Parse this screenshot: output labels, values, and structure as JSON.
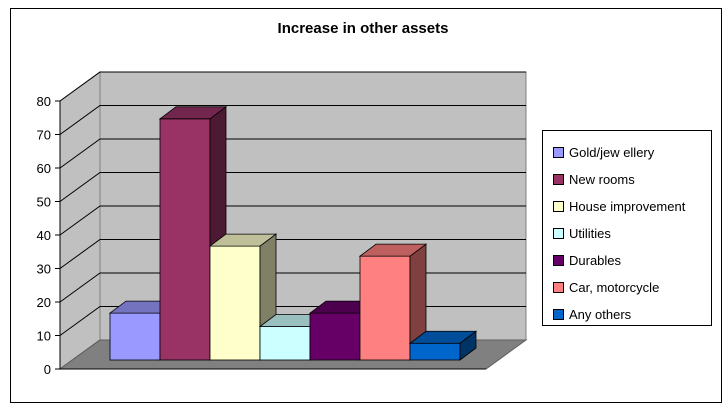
{
  "chart_data": {
    "type": "bar",
    "title": "Increase in other assets",
    "xlabel": "",
    "ylabel": "",
    "ylim": [
      0,
      80
    ],
    "yticks": [
      0,
      10,
      20,
      30,
      40,
      50,
      60,
      70,
      80
    ],
    "grid": true,
    "legend_position": "right",
    "series": [
      {
        "name": "Gold/jew ellery",
        "values": [
          14
        ],
        "color": "#9999FF"
      },
      {
        "name": "New  rooms",
        "values": [
          72
        ],
        "color": "#993366"
      },
      {
        "name": "House improvement",
        "values": [
          34
        ],
        "color": "#FFFFCC"
      },
      {
        "name": "Utilities",
        "values": [
          10
        ],
        "color": "#CCFFFF"
      },
      {
        "name": "Durables",
        "values": [
          14
        ],
        "color": "#660066"
      },
      {
        "name": "Car, motorcycle",
        "values": [
          31
        ],
        "color": "#FF8080"
      },
      {
        "name": "Any others",
        "values": [
          5
        ],
        "color": "#0066CC"
      }
    ]
  }
}
